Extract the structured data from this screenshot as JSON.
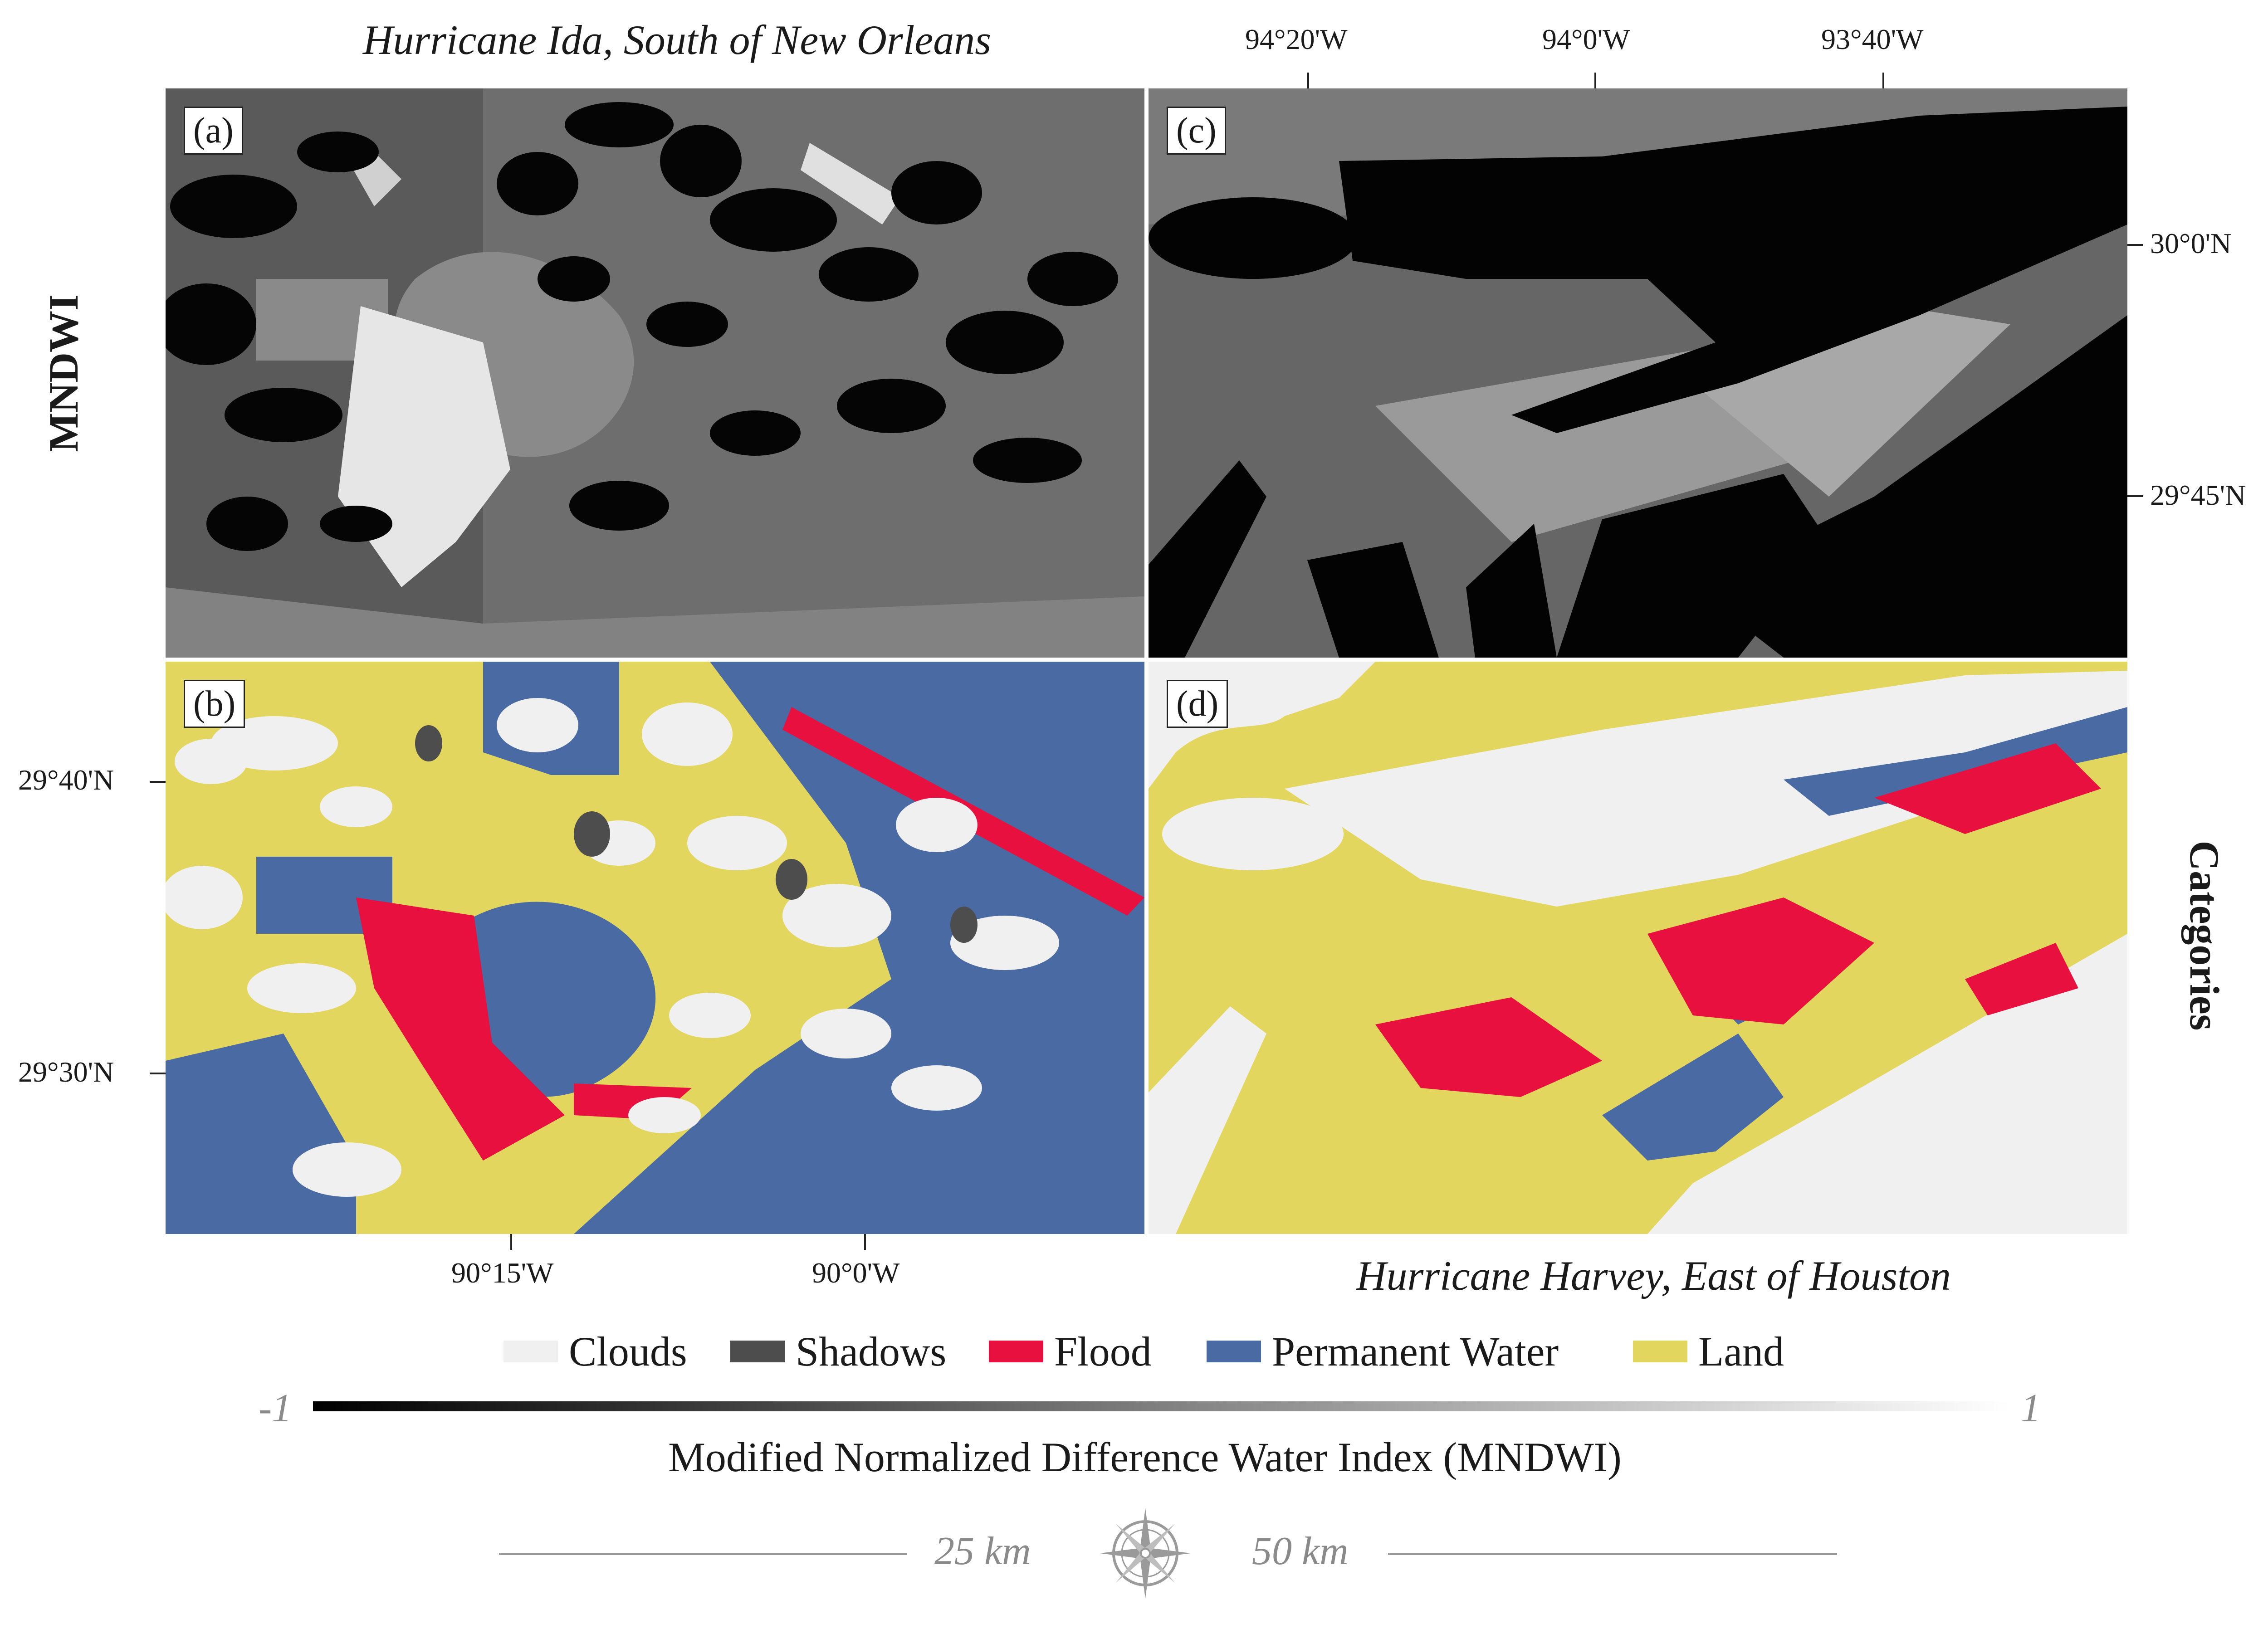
{
  "titles": {
    "left": "Hurricane Ida, South of New Orleans",
    "right": "Hurricane Harvey, East of Houston"
  },
  "row_labels": {
    "top": "MNDWI",
    "bottom": "Categories"
  },
  "panel_labels": {
    "a": "(a)",
    "b": "(b)",
    "c": "(c)",
    "d": "(d)"
  },
  "axes": {
    "top_ticks": [
      "94°20'W",
      "94°0'W",
      "93°40'W"
    ],
    "bottom_ticks": [
      "90°15'W",
      "90°0'W"
    ],
    "right_ticks": [
      "30°0'N",
      "29°45'N"
    ],
    "left_ticks": [
      "29°40'N",
      "29°30'N"
    ]
  },
  "legend": {
    "items": [
      {
        "label": "Clouds",
        "color": "#f0f0f0"
      },
      {
        "label": "Shadows",
        "color": "#4d4d4d"
      },
      {
        "label": "Flood",
        "color": "#e8103e"
      },
      {
        "label": "Permanent Water",
        "color": "#4a6aa4"
      },
      {
        "label": "Land",
        "color": "#e3d65e"
      }
    ]
  },
  "colorbar": {
    "min_label": "-1",
    "max_label": "1",
    "title": "Modified Normalized Difference Water Index (MNDWI)"
  },
  "scale": {
    "label_1": "25 km",
    "label_2": "50 km"
  },
  "map_colors": {
    "flood": "#e8103e",
    "water": "#4a6aa4",
    "land": "#e3d65e",
    "cloud": "#f0f0f0",
    "shadow": "#4d4d4d"
  }
}
